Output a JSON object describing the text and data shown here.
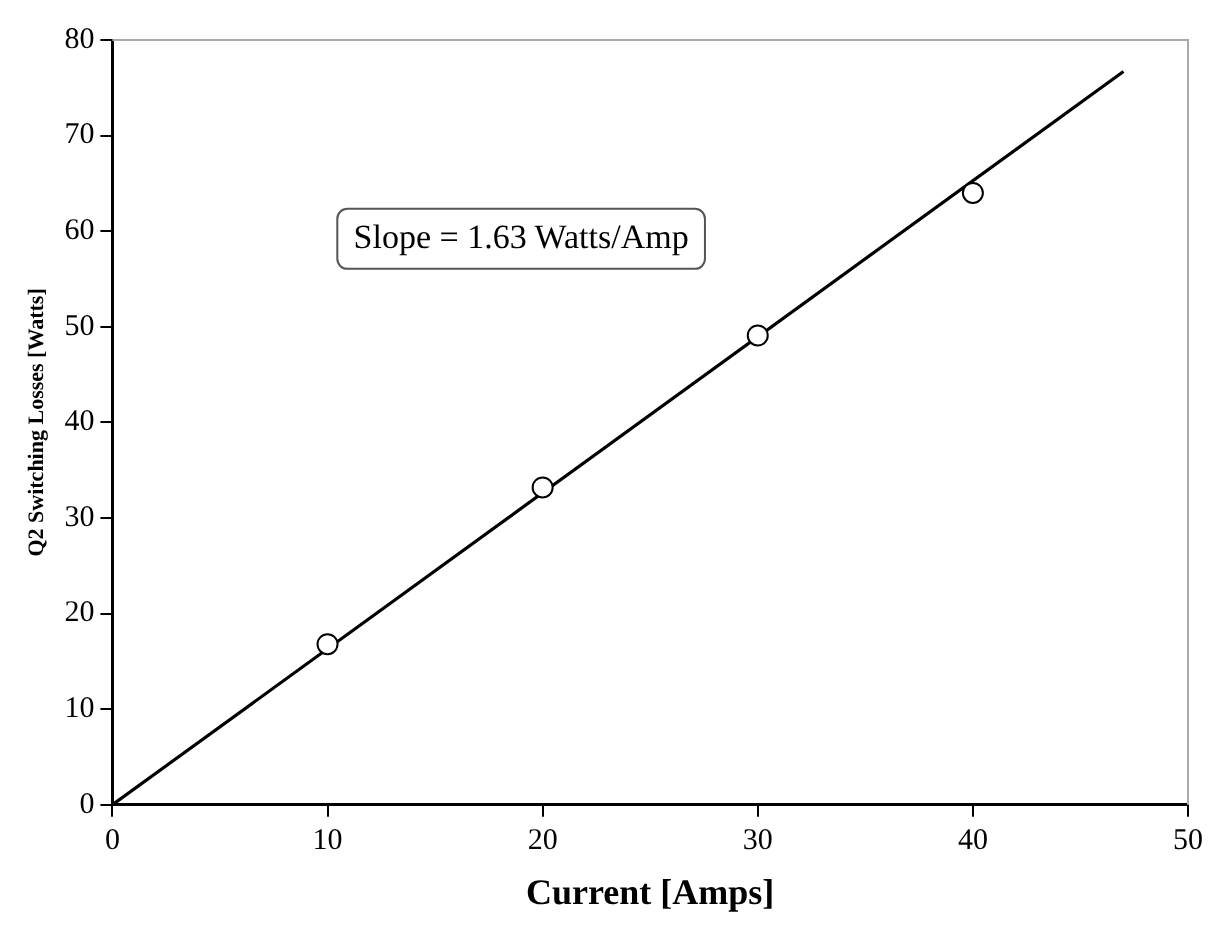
{
  "chart_data": {
    "type": "scatter",
    "xlabel": "Current [Amps]",
    "ylabel": "Q2 Switching Losses [Watts]",
    "xlim": [
      0,
      50
    ],
    "xticks": [
      0,
      10,
      20,
      30,
      40,
      50
    ],
    "ylim": [
      0,
      80
    ],
    "yticks": [
      0,
      10,
      20,
      30,
      40,
      50,
      60,
      70,
      80
    ],
    "grid": false,
    "marker": "circle",
    "annotations": [
      "Slope = 1.63 Watts/Amp"
    ],
    "series": [
      {
        "type": "scatter",
        "color": "#000000",
        "x": [
          10,
          20,
          30,
          40
        ],
        "values": [
          16.8,
          33.2,
          49.1,
          64.0
        ]
      },
      {
        "type": "line",
        "color": "#000000",
        "x": [
          0,
          47
        ],
        "values": [
          0,
          76.7
        ],
        "marker": "none",
        "line_style": "solid"
      }
    ]
  }
}
